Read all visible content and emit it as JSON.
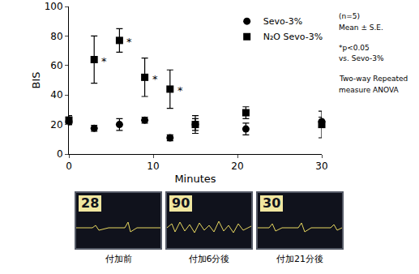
{
  "chart_data": {
    "type": "scatter",
    "x_label": "Minutes",
    "y_label": "BIS",
    "xlim": [
      0,
      30
    ],
    "xticks": [
      0,
      10,
      20,
      30
    ],
    "ylim": [
      0,
      100
    ],
    "yticks": [
      0,
      20,
      40,
      60,
      80,
      100
    ],
    "grid": false,
    "legend": "top-right",
    "x": [
      0,
      3,
      6,
      9,
      12,
      15,
      21,
      30
    ],
    "series": [
      {
        "name": "Sevo-3%",
        "color": "#000000",
        "marker": "circle",
        "values": [
          22,
          17.5,
          20,
          23,
          11,
          20,
          17,
          22
        ],
        "errors": [
          2,
          2,
          4,
          2,
          2,
          4,
          4,
          3
        ]
      },
      {
        "name": "N₂O Sevo-3%",
        "color": "#000000",
        "marker": "square",
        "values": [
          23,
          64,
          77,
          52,
          44,
          20,
          28,
          20
        ],
        "errors": [
          3,
          16,
          8,
          13,
          13,
          6,
          4,
          9
        ]
      }
    ],
    "annotations": [
      {
        "x": 3,
        "y": 64,
        "text": "*"
      },
      {
        "x": 6,
        "y": 77,
        "text": "*"
      },
      {
        "x": 9,
        "y": 52,
        "text": "*"
      },
      {
        "x": 12,
        "y": 44,
        "text": "*"
      }
    ],
    "notes": [
      "(n=5)",
      "Mean ± S.E.",
      "*p<0.05",
      "vs. Sevo-3%",
      "Two-way Repeated",
      "measure ANOVA"
    ]
  },
  "screens": [
    {
      "reading": 28,
      "caption": "付加前"
    },
    {
      "reading": 90,
      "caption": "付加6分後"
    },
    {
      "reading": 30,
      "caption": "付加21分後"
    }
  ]
}
